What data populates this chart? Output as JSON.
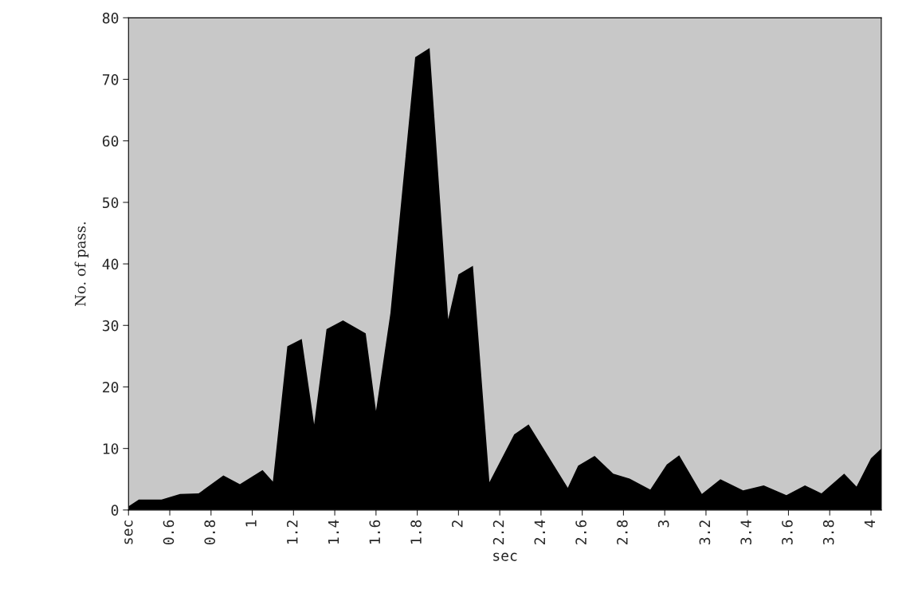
{
  "chart_data": {
    "type": "area",
    "xlabel": "sec",
    "ylabel": "No. of pass.",
    "x": [
      0.4,
      0.45,
      0.56,
      0.65,
      0.74,
      0.86,
      0.94,
      1.05,
      1.1,
      1.17,
      1.24,
      1.3,
      1.36,
      1.44,
      1.55,
      1.6,
      1.67,
      1.79,
      1.86,
      1.95,
      2.0,
      2.07,
      2.15,
      2.27,
      2.34,
      2.53,
      2.58,
      2.66,
      2.75,
      2.83,
      2.93,
      3.01,
      3.07,
      3.18,
      3.27,
      3.38,
      3.48,
      3.59,
      3.68,
      3.76,
      3.87,
      3.93,
      4.0,
      4.05
    ],
    "series": [
      {
        "color": "#000000",
        "values": [
          0.6,
          1.7,
          1.7,
          2.6,
          2.7,
          5.6,
          4.2,
          6.5,
          4.6,
          26.6,
          27.8,
          13.9,
          29.4,
          30.8,
          28.7,
          16.1,
          32,
          73.6,
          75.1,
          31,
          38.3,
          39.7,
          4.5,
          12.3,
          13.9,
          3.6,
          7.2,
          8.8,
          5.9,
          5.1,
          3.3,
          7.4,
          8.9,
          2.6,
          5.0,
          3.2,
          4.0,
          2.4,
          4.0,
          2.7,
          5.9,
          3.8,
          8.4,
          10.0
        ]
      }
    ],
    "xlim": [
      0.4,
      4.05
    ],
    "xticks": [
      {
        "value": 0.4,
        "label": "sec"
      },
      0.6,
      0.8,
      1,
      1.2,
      1.4,
      1.6,
      1.8,
      2,
      2.2,
      2.4,
      2.6,
      2.8,
      3,
      3.2,
      3.4,
      3.6,
      3.8,
      4
    ],
    "ylim": [
      0,
      80
    ],
    "yticks": [
      0,
      10,
      20,
      30,
      40,
      50,
      60,
      70,
      80
    ]
  }
}
